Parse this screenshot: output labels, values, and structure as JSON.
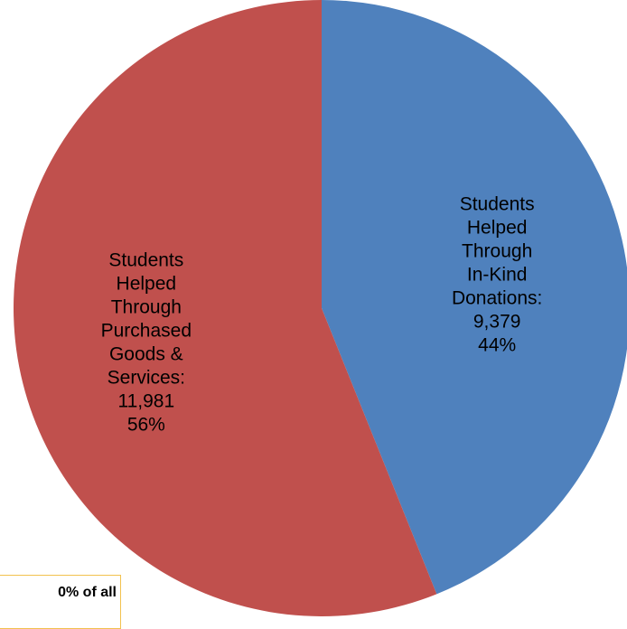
{
  "chart_data": {
    "type": "pie",
    "colors": {
      "in_kind": "#4f81bd",
      "purchased": "#c0504d"
    },
    "slices": [
      {
        "key": "in_kind",
        "value": 9379,
        "percent": 44,
        "label_lines": [
          "Students",
          "Helped",
          "Through",
          "In-Kind",
          "Donations:",
          "9,379",
          "44%"
        ]
      },
      {
        "key": "purchased",
        "value": 11981,
        "percent": 56,
        "label_lines": [
          "Students",
          "Helped",
          "Through",
          "Purchased",
          "Goods &",
          "Services:",
          "11,981",
          "56%"
        ]
      }
    ]
  },
  "callout": {
    "text": "0% of all"
  }
}
